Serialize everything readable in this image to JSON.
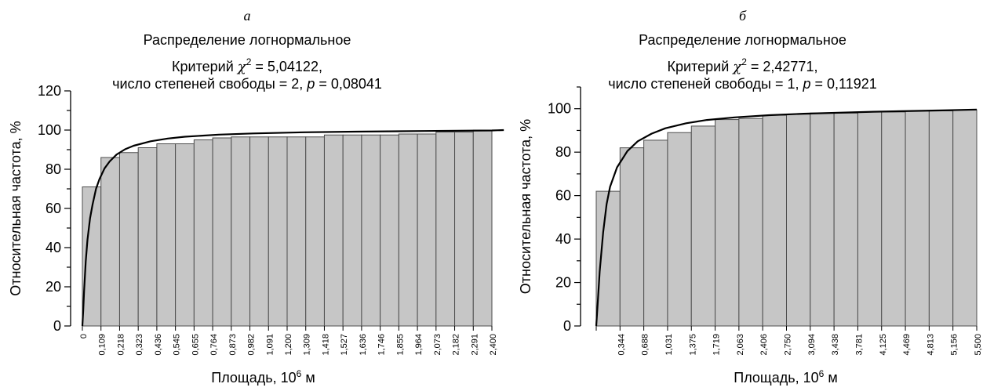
{
  "chart_data": [
    {
      "type": "bar",
      "panel_label": "а",
      "title_line1": "Распределение логнормальное",
      "title_line2_prefix": "Критерий ",
      "title_line2_symbol": "χ",
      "title_line2_sup": "2",
      "title_line2_suffix": " = 5,04122,",
      "title_line3_prefix": "число степеней свободы = 2, ",
      "title_line3_p": "p",
      "title_line3_suffix": " = 0,08041",
      "xlabel_text": "Площадь, 10",
      "xlabel_sup": "6",
      "xlabel_unit": " м",
      "ylabel": "Относительная частота, %",
      "ylim": [
        0,
        120
      ],
      "y_ticks": [
        "0",
        "20",
        "40",
        "60",
        "80",
        "100",
        "120"
      ],
      "x_ticks": [
        "0",
        "0,109",
        "0,218",
        "0,323",
        "0,436",
        "0,545",
        "0,655",
        "0,764",
        "0,873",
        "0,982",
        "1,091",
        "1,200",
        "1,309",
        "1,418",
        "1,527",
        "1,636",
        "1,746",
        "1,855",
        "1,964",
        "2,073",
        "2,182",
        "2,291",
        "2,400"
      ],
      "values": [
        71,
        86,
        88.5,
        91,
        93,
        93,
        95,
        96,
        96.5,
        96.5,
        96.5,
        96.5,
        96.5,
        97.5,
        97.5,
        97.5,
        97.5,
        98,
        98,
        99,
        99,
        100
      ],
      "fit_curve_x": [
        0,
        0.005,
        0.01,
        0.02,
        0.03,
        0.045,
        0.06,
        0.08,
        0.1,
        0.13,
        0.16,
        0.2,
        0.25,
        0.3,
        0.4,
        0.5,
        0.6,
        0.8,
        1.0,
        1.3,
        1.6,
        2.0,
        2.4,
        2.47
      ],
      "fit_curve_y": [
        0,
        8,
        18,
        33,
        44,
        55,
        62,
        70,
        75,
        80.5,
        84,
        87.5,
        90.2,
        92,
        94.3,
        95.7,
        96.6,
        97.7,
        98.3,
        98.9,
        99.2,
        99.5,
        99.8,
        100
      ],
      "grid": false
    },
    {
      "type": "bar",
      "panel_label": "б",
      "title_line1": "Распределение логнормальное",
      "title_line2_prefix": "Критерий ",
      "title_line2_symbol": "χ",
      "title_line2_sup": "2",
      "title_line2_suffix": " = 2,42771,",
      "title_line3_prefix": "число степеней свободы = 1, ",
      "title_line3_p": "p",
      "title_line3_suffix": " = 0,11921",
      "xlabel_text": "Площадь, 10",
      "xlabel_sup": "6",
      "xlabel_unit": " м",
      "ylabel": "Относительная частота, %",
      "ylim": [
        0,
        110
      ],
      "y_ticks": [
        "0",
        "20",
        "40",
        "60",
        "80",
        "100"
      ],
      "x_ticks": [
        "",
        "0,344",
        "0,688",
        "1,031",
        "1,375",
        "1,719",
        "2,063",
        "2,406",
        "2,750",
        "3,094",
        "3,438",
        "3,781",
        "4,125",
        "4,469",
        "4,813",
        "5,156",
        "5,500"
      ],
      "values": [
        62,
        82,
        85.5,
        89,
        92,
        95,
        95.5,
        97,
        97.5,
        98,
        98,
        98.5,
        98.5,
        99,
        99,
        99.5
      ],
      "fit_curve_x": [
        0,
        0.02,
        0.05,
        0.1,
        0.15,
        0.2,
        0.3,
        0.45,
        0.6,
        0.8,
        1.0,
        1.3,
        1.6,
        2.0,
        2.5,
        3.0,
        4.0,
        5.0,
        5.5
      ],
      "fit_curve_y": [
        0,
        10,
        25,
        43,
        56,
        64,
        73,
        80.5,
        85,
        88.5,
        91,
        93.3,
        94.8,
        96,
        97,
        97.7,
        98.6,
        99.2,
        99.6
      ],
      "grid": false
    }
  ]
}
